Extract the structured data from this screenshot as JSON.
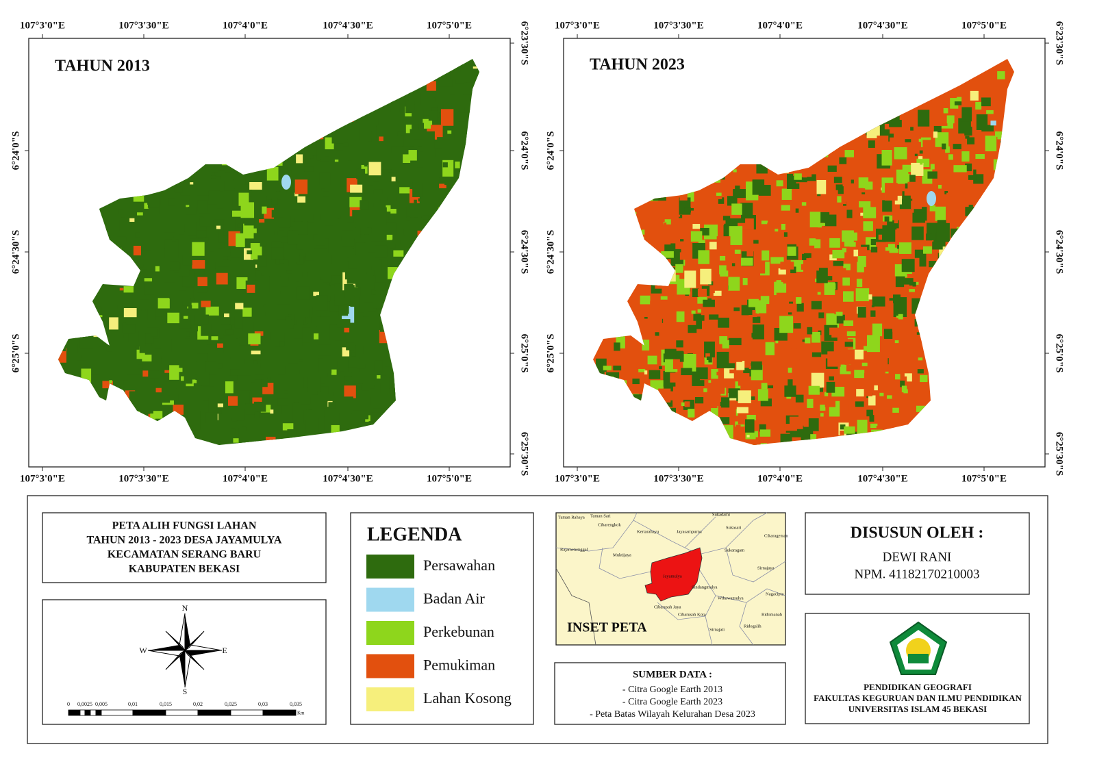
{
  "maps": [
    {
      "title": "TAHUN 2013",
      "top_labels": [
        "107°3'0\"E",
        "107°3'30\"E",
        "107°4'0\"E",
        "107°4'30\"E",
        "107°5'0\"E"
      ],
      "bottom_labels": [
        "107°3'0\"E",
        "107°3'30\"E",
        "107°4'0\"E",
        "107°4'30\"E",
        "107°5'0\"E"
      ],
      "left_labels": [
        "6°24'0\"S",
        "6°24'30\"S",
        "6°25'0\"S"
      ],
      "right_labels": [
        "6°23'30\"S",
        "6°24'0\"S",
        "6°24'30\"S",
        "6°25'0\"S",
        "6°25'30\"S"
      ]
    },
    {
      "title": "TAHUN 2023",
      "top_labels": [
        "107°3'0\"E",
        "107°3'30\"E",
        "107°4'0\"E",
        "107°4'30\"E",
        "107°5'0\"E"
      ],
      "bottom_labels": [
        "107°3'0\"E",
        "107°3'30\"E",
        "107°4'0\"E",
        "107°4'30\"E",
        "107°5'0\"E"
      ],
      "left_labels": [
        "6°24'0\"S",
        "6°24'30\"S",
        "6°25'0\"S"
      ],
      "right_labels": [
        "6°23'30\"S",
        "6°24'0\"S",
        "6°24'30\"S",
        "6°25'0\"S",
        "6°25'30\"S"
      ]
    }
  ],
  "title_box": {
    "lines": [
      "PETA ALIH FUNGSI LAHAN",
      "TAHUN 2013 - 2023 DESA JAYAMULYA",
      "KECAMATAN SERANG BARU",
      "KABUPATEN BEKASI"
    ]
  },
  "compass": {
    "n": "N",
    "e": "E",
    "s": "S",
    "w": "W"
  },
  "scale": {
    "labels": [
      "0",
      "0,0025",
      "0,005",
      "0,01",
      "0,015",
      "0,02",
      "0,025",
      "0,03",
      "0,035"
    ],
    "unit": "Km"
  },
  "legend": {
    "title": "LEGENDA",
    "items": [
      {
        "label": "Persawahan",
        "color": "#2e6b0e"
      },
      {
        "label": "Badan Air",
        "color": "#9fd8ef"
      },
      {
        "label": "Perkebunan",
        "color": "#8ed61c"
      },
      {
        "label": "Pemukiman",
        "color": "#e2500e"
      },
      {
        "label": "Lahan Kosong",
        "color": "#f6ef7c"
      }
    ]
  },
  "inset": {
    "title": "INSET PETA",
    "places": [
      "Taman Rahaya",
      "Taman Sari",
      "Cibarengkok",
      "Kertarahayu",
      "Jayasampurna",
      "Sukadami",
      "Sukasari",
      "Cikarageman",
      "Rajamenenggal",
      "Muktijaya",
      "Jayamulya",
      "Sukaragam",
      "Sirnajaya",
      "Sindangmulya",
      "Nagacipta",
      "Wibawamulya",
      "Cibarusah Jaya",
      "Cibarusah Kota",
      "Sirnajati",
      "Ridogalih",
      "Ridomanah"
    ]
  },
  "sources": {
    "title": "SUMBER DATA :",
    "items": [
      "- Citra Google Earth 2013",
      "- Citra Google Earth 2023",
      "- Peta Batas Wilayah Kelurahan Desa 2023"
    ]
  },
  "author": {
    "title": "DISUSUN OLEH :",
    "name": "DEWI RANI",
    "id": "NPM. 41182170210003"
  },
  "institution": {
    "lines": [
      "PENDIDIKAN GEOGRAFI",
      "FAKULTAS KEGURUAN DAN ILMU PENDIDIKAN",
      "UNIVERSITAS ISLAM 45 BEKASI"
    ]
  }
}
